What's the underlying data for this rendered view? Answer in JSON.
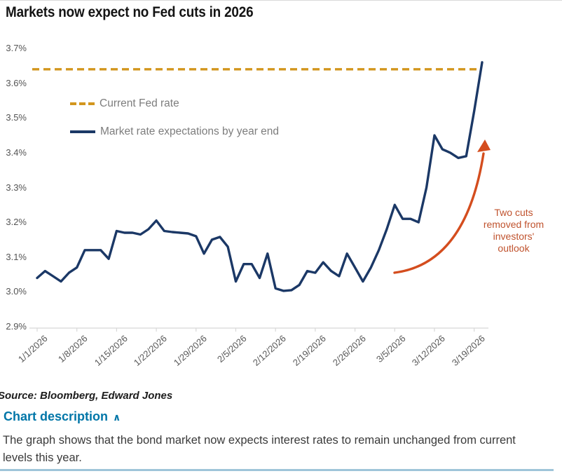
{
  "title": "Markets now expect no Fed cuts in 2026",
  "chart_data": {
    "type": "line",
    "title": "Markets now expect no Fed cuts in 2026",
    "xlabel": "",
    "ylabel": "",
    "ylim": [
      2.9,
      3.7
    ],
    "y_tick_labels": [
      "3.7%",
      "3.6%",
      "3.5%",
      "3.4%",
      "3.3%",
      "3.2%",
      "3.1%",
      "3.0%",
      "2.9%"
    ],
    "x_tick_labels": [
      "1/1/2026",
      "1/8/2026",
      "1/15/2026",
      "1/22/2026",
      "1/29/2026",
      "2/5/2026",
      "2/12/2026",
      "2/19/2026",
      "2/26/2026",
      "3/5/2026",
      "3/12/2026",
      "3/19/2026"
    ],
    "points_per_x_tick": 5,
    "grid": false,
    "legend_position": "inside-top-left",
    "series": [
      {
        "name": "Current Fed rate",
        "style": "dashed",
        "value": 3.64
      },
      {
        "name": "Market rate expectations by year end",
        "style": "solid",
        "values": [
          3.04,
          3.06,
          3.045,
          3.03,
          3.055,
          3.07,
          3.12,
          3.12,
          3.12,
          3.095,
          3.175,
          3.17,
          3.17,
          3.165,
          3.18,
          3.205,
          3.175,
          3.172,
          3.17,
          3.168,
          3.16,
          3.11,
          3.15,
          3.158,
          3.13,
          3.03,
          3.08,
          3.08,
          3.04,
          3.11,
          3.01,
          3.003,
          3.005,
          3.02,
          3.06,
          3.055,
          3.085,
          3.06,
          3.045,
          3.11,
          3.07,
          3.03,
          3.07,
          3.12,
          3.18,
          3.25,
          3.21,
          3.21,
          3.2,
          3.3,
          3.45,
          3.41,
          3.4,
          3.385,
          3.39,
          3.52,
          3.66
        ]
      }
    ],
    "annotation": {
      "text": "Two cuts removed from investors' outlook",
      "arrow": true
    }
  },
  "legend": {
    "item1": "Current Fed rate",
    "item2": "Market rate expectations by year end"
  },
  "source": "Source: Bloomberg, Edward Jones",
  "description": {
    "toggle_label": "Chart description",
    "chevron": "∧",
    "body": "The graph shows that the bond market now expects interest rates to remain unchanged from current levels this year."
  },
  "colors": {
    "navy": "#1B3866",
    "gold": "#D2961E",
    "arrow": "#D44D1E",
    "annotation_text": "#C0532E",
    "teal": "#0076A8",
    "divider": "#9FC5D9",
    "title": "#141414",
    "axis_line": "#D8D8D8"
  }
}
